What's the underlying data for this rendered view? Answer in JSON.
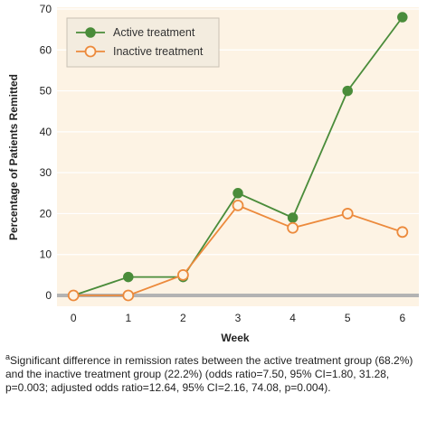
{
  "chart_data": {
    "type": "line",
    "x": [
      0,
      1,
      2,
      3,
      4,
      5,
      6
    ],
    "xticks": [
      "0",
      "1",
      "2",
      "3",
      "4",
      "5",
      "6"
    ],
    "xlabel": "Week",
    "ylabel": "Percentage of Patients Remitted",
    "ylim": [
      0,
      70
    ],
    "yticks": [
      0,
      10,
      20,
      30,
      40,
      50,
      60,
      70
    ],
    "xlim": [
      -0.3,
      6.3
    ],
    "grid": "horizontal",
    "legend": "top-left",
    "series": [
      {
        "name": "Active treatment",
        "color": "#4a8c3a",
        "marker": "filled-circle",
        "values": [
          0,
          4.5,
          4.5,
          25,
          19,
          50,
          68
        ]
      },
      {
        "name": "Inactive treatment",
        "color": "#ec8a3c",
        "marker": "open-circle",
        "values": [
          0,
          0,
          5,
          22,
          16.5,
          20,
          15.5
        ]
      }
    ]
  },
  "footnote": {
    "marker": "a",
    "text": "Significant difference in remission rates between the active treatment group (68.2%) and the inactive treatment group (22.2%) (odds ratio=7.50, 95% CI=1.80, 31.28, p=0.003; adjusted odds ratio=12.64, 95% CI=2.16, 74.08, p=0.004)."
  }
}
